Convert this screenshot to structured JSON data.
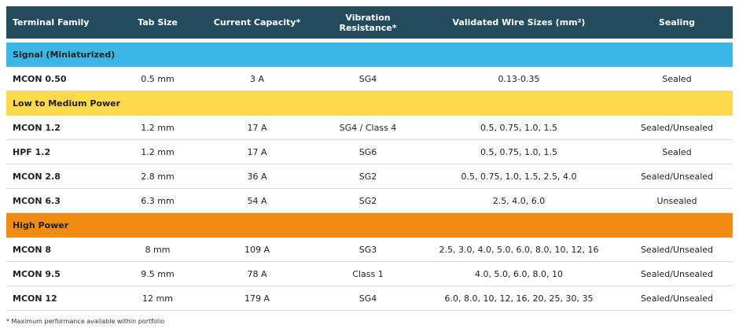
{
  "table": {
    "columns": [
      "Terminal Family",
      "Tab Size",
      "Current Capacity*",
      "Vibration Resistance*",
      "Validated Wire Sizes (mm²)",
      "Sealing"
    ],
    "groups": [
      {
        "title": "Signal (Miniaturized)",
        "color": "#3cb6e6",
        "rows": [
          [
            "MCON 0.50",
            "0.5 mm",
            "3 A",
            "SG4",
            "0.13-0.35",
            "Sealed"
          ]
        ]
      },
      {
        "title": "Low to Medium Power",
        "color": "#fdd94c",
        "rows": [
          [
            "MCON 1.2",
            "1.2 mm",
            "17 A",
            "SG4 / Class 4",
            "0.5, 0.75, 1.0, 1.5",
            "Sealed/Unsealed"
          ],
          [
            "HPF 1.2",
            "1.2 mm",
            "17 A",
            "SG6",
            "0.5, 0.75, 1.0, 1.5",
            "Sealed"
          ],
          [
            "MCON 2.8",
            "2.8 mm",
            "36 A",
            "SG2",
            "0.5, 0.75, 1.0, 1.5, 2.5, 4.0",
            "Sealed/Unsealed"
          ],
          [
            "MCON 6.3",
            "6.3 mm",
            "54 A",
            "SG2",
            "2.5, 4.0, 6.0",
            "Unsealed"
          ]
        ]
      },
      {
        "title": "High Power",
        "color": "#f08c12",
        "rows": [
          [
            "MCON 8",
            "8 mm",
            "109 A",
            "SG3",
            "2.5, 3.0, 4.0, 5.0, 6.0, 8.0, 10, 12, 16",
            "Sealed/Unsealed"
          ],
          [
            "MCON 9.5",
            "9.5 mm",
            "78 A",
            "Class 1",
            "4.0, 5.0, 6.0, 8.0, 10",
            "Sealed/Unsealed"
          ],
          [
            "MCON 12",
            "12 mm",
            "179 A",
            "SG4",
            "6.0, 8.0, 10, 12, 16, 20, 25, 30, 35",
            "Sealed/Unsealed"
          ]
        ]
      }
    ]
  },
  "footnote": "* Maximum performance available within portfolio"
}
